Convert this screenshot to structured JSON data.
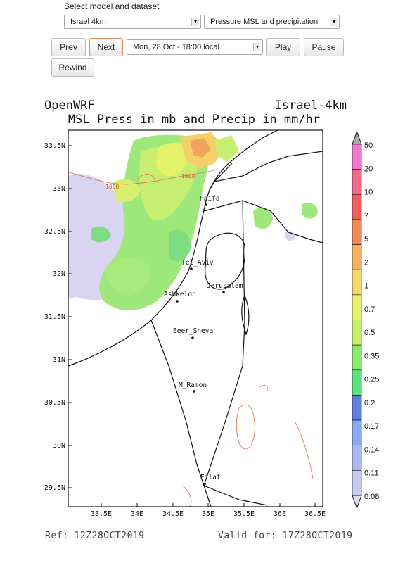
{
  "controls": {
    "select_label": "Select model and dataset",
    "model_value": "Israel 4km",
    "dataset_value": "Pressure MSL and precipitation",
    "prev_label": "Prev",
    "next_label": "Next",
    "time_value": "Mon, 28 Oct - 18:00 local",
    "play_label": "Play",
    "pause_label": "Pause",
    "rewind_label": "Rewind"
  },
  "plot": {
    "left_title": "OpenWRF",
    "right_title": "Israel-4km",
    "main_title": "MSL Press in mb and Precip in mm/hr",
    "lat_labels": [
      "33.5N",
      "33N",
      "32.5N",
      "32N",
      "31.5N",
      "31N",
      "30.5N",
      "30N",
      "29.5N"
    ],
    "lon_labels": [
      "33.5E",
      "34E",
      "34.5E",
      "35E",
      "35.5E",
      "36E",
      "36.5E"
    ],
    "cities": [
      "Haifa",
      "Tel_Aviv",
      "Jerusalem",
      "Ashkelon",
      "Beer_Sheva",
      "M_Ramon",
      "Eilat"
    ],
    "isobar_labels": [
      "1008",
      "1008"
    ],
    "ref": "Ref: 12Z28OCT2019",
    "valid": "Valid for: 17Z28OCT2019"
  },
  "colorbar": {
    "levels": [
      "50",
      "20",
      "10",
      "7",
      "5",
      "2",
      "1",
      "0.7",
      "0.5",
      "0.35",
      "0.25",
      "0.2",
      "0.17",
      "0.14",
      "0.11",
      "0.08"
    ],
    "colors": [
      "#a8a8a8",
      "#f07ad0",
      "#f06a8a",
      "#f06060",
      "#f28a58",
      "#f5b060",
      "#f6d870",
      "#e8f070",
      "#c8f070",
      "#90e870",
      "#60e080",
      "#6080e0",
      "#8aaaf0",
      "#aabaf0",
      "#c8c8f0",
      "#e0dcf4"
    ]
  }
}
